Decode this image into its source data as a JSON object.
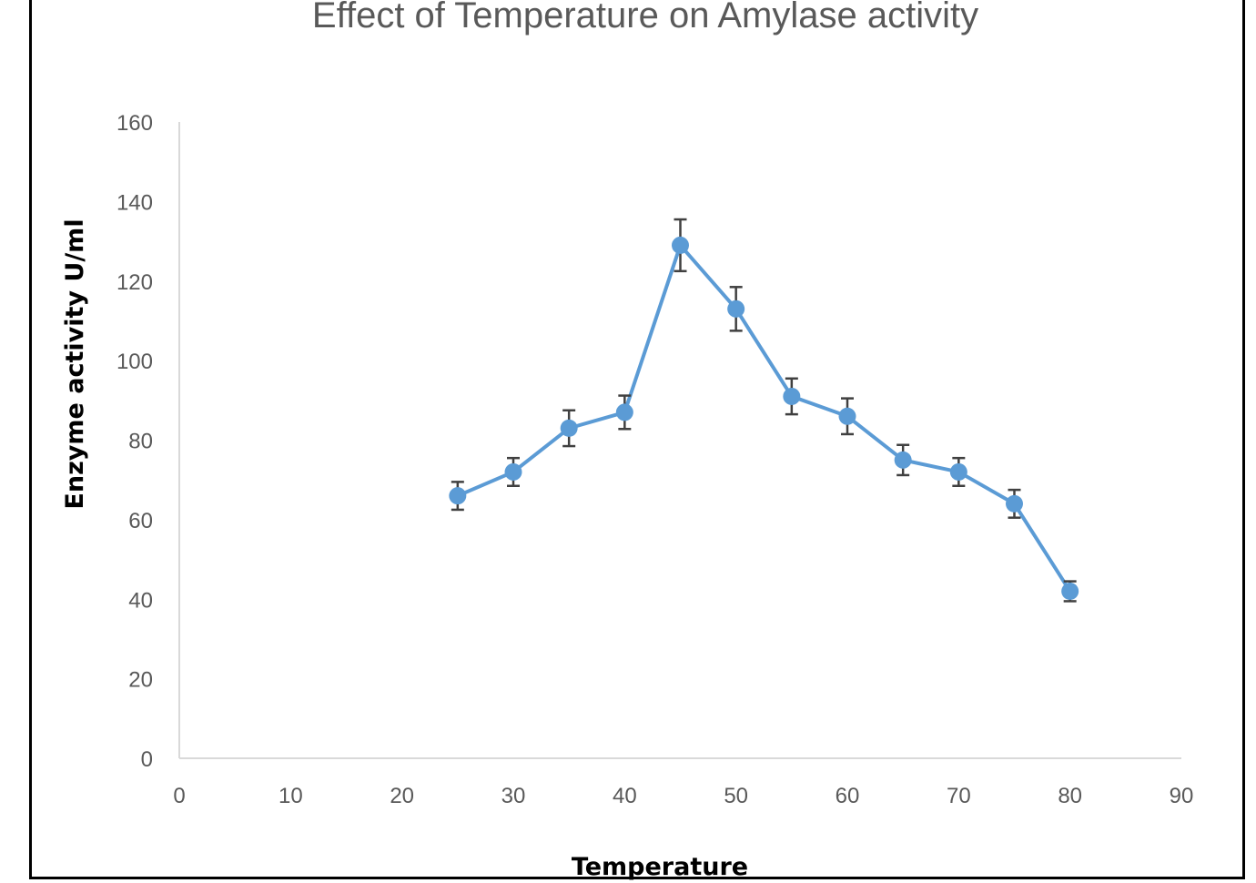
{
  "chart_data": {
    "type": "line",
    "title": "Effect of Temperature on Amylase activity",
    "xlabel": "Temperature",
    "ylabel": "Enzyme activity U/ml",
    "xlim": [
      0,
      90
    ],
    "ylim": [
      0,
      160
    ],
    "x_ticks": [
      0,
      10,
      20,
      30,
      40,
      50,
      60,
      70,
      80,
      90
    ],
    "y_ticks": [
      0,
      20,
      40,
      60,
      80,
      100,
      120,
      140,
      160
    ],
    "grid": false,
    "legend": "none",
    "colors": {
      "series": "#5b9bd5",
      "error_bars": "#404040",
      "axis": "#d9d9d9"
    },
    "series": [
      {
        "x": [
          25,
          30,
          35,
          40,
          45,
          50,
          55,
          60,
          65,
          70,
          75,
          80
        ],
        "y": [
          66,
          72,
          83,
          87,
          129,
          113,
          91,
          86,
          75,
          72,
          64,
          42
        ],
        "error": [
          3.5,
          3.5,
          4.5,
          4.2,
          6.5,
          5.5,
          4.5,
          4.5,
          3.8,
          3.5,
          3.5,
          2.5
        ]
      }
    ]
  }
}
